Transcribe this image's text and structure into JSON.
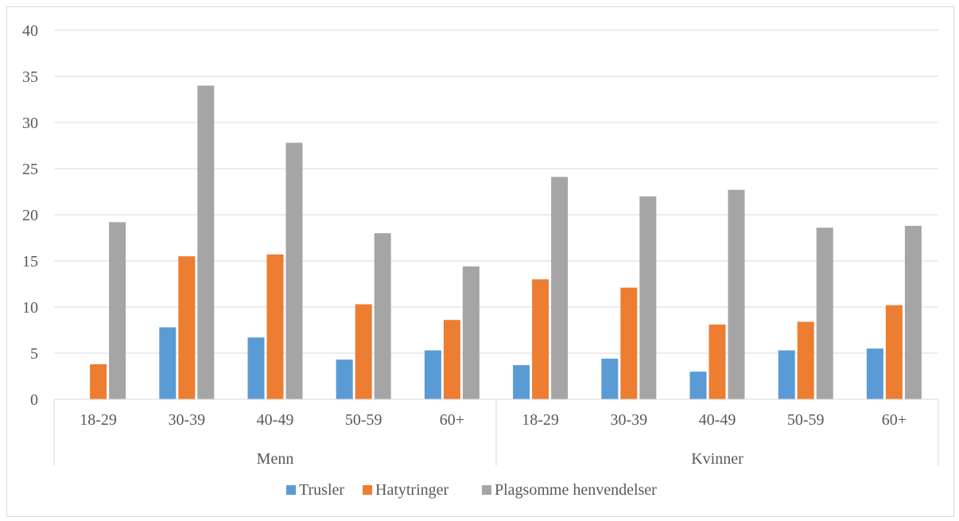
{
  "chart_data": {
    "type": "bar",
    "title": "",
    "xlabel": "",
    "ylabel": "",
    "ylim": [
      0,
      40
    ],
    "yticks": [
      0,
      5,
      10,
      15,
      20,
      25,
      30,
      35,
      40
    ],
    "grid": true,
    "legend_position": "bottom",
    "groups": [
      {
        "label": "Menn",
        "categories": [
          "18-29",
          "30-39",
          "40-49",
          "50-59",
          "60+"
        ]
      },
      {
        "label": "Kvinner",
        "categories": [
          "18-29",
          "30-39",
          "40-49",
          "50-59",
          "60+"
        ]
      }
    ],
    "series": [
      {
        "name": "Trusler",
        "color": "#5b9bd5",
        "values": [
          0,
          7.8,
          6.7,
          4.3,
          5.3,
          3.7,
          4.4,
          3.0,
          5.3,
          5.5
        ]
      },
      {
        "name": "Hatytringer",
        "color": "#ed7d31",
        "values": [
          3.8,
          15.5,
          15.7,
          10.3,
          8.6,
          13.0,
          12.1,
          8.1,
          8.4,
          10.2
        ]
      },
      {
        "name": "Plagsomme henvendelser",
        "color": "#a5a5a5",
        "values": [
          19.2,
          34.0,
          27.8,
          18.0,
          14.4,
          24.1,
          22.0,
          22.7,
          18.6,
          18.8
        ]
      }
    ]
  }
}
